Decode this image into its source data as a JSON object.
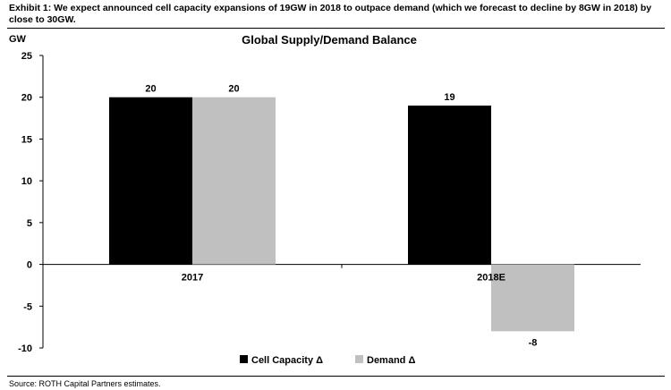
{
  "exhibit": {
    "title": "Exhibit 1: We expect announced cell capacity expansions of 19GW in 2018 to outpace demand (which we forecast to decline by 8GW in 2018) by close to 30GW."
  },
  "source": "Source: ROTH Capital Partners estimates.",
  "chart_data": {
    "type": "bar",
    "title": "Global Supply/Demand Balance",
    "ylabel": "GW",
    "xlabel": "",
    "categories": [
      "2017",
      "2018E"
    ],
    "series": [
      {
        "name": "Cell Capacity Δ",
        "color": "#000000",
        "values": [
          20,
          19
        ]
      },
      {
        "name": "Demand Δ",
        "color": "#c0c0c0",
        "values": [
          20,
          -8
        ]
      }
    ],
    "data_labels": [
      [
        "20",
        "19"
      ],
      [
        "20",
        "-8"
      ]
    ],
    "ylim": [
      -10,
      25
    ],
    "yticks": [
      -10,
      -5,
      0,
      5,
      10,
      15,
      20,
      25
    ],
    "grid": false,
    "legend": "bottom-center"
  }
}
